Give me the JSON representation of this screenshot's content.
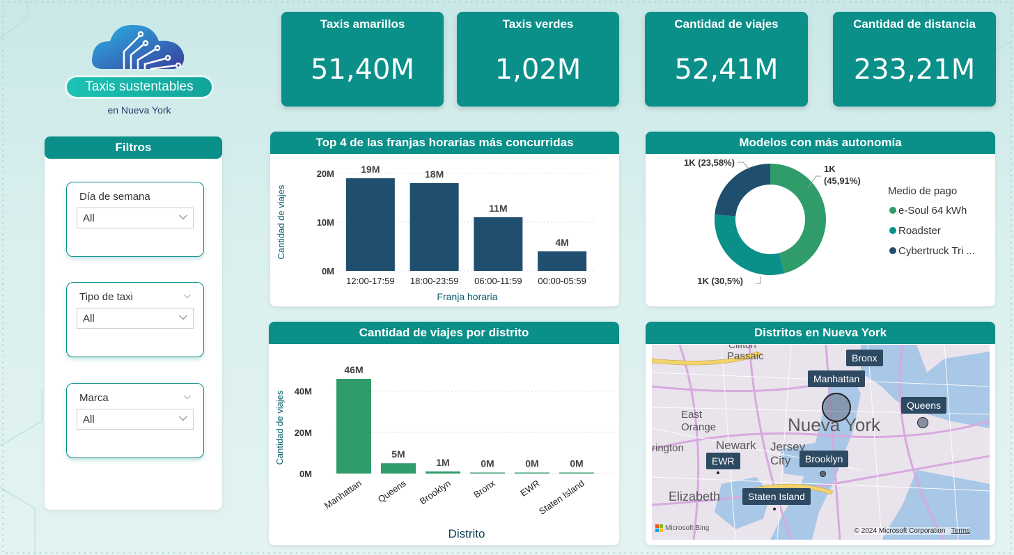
{
  "logo": {
    "title": "Taxis sustentables",
    "subtitle": "en Nueva York"
  },
  "kpis": [
    {
      "title": "Taxis amarillos",
      "value": "51,40M"
    },
    {
      "title": "Taxis verdes",
      "value": "1,02M"
    },
    {
      "title": "Cantidad de viajes",
      "value": "52,41M"
    },
    {
      "title": "Cantidad de distancia",
      "value": "233,21M"
    }
  ],
  "filters": {
    "title": "Filtros",
    "slicers": [
      {
        "label": "Día de semana",
        "value": "All"
      },
      {
        "label": "Tipo de taxi",
        "value": "All"
      },
      {
        "label": "Marca",
        "value": "All"
      }
    ]
  },
  "chart_data": [
    {
      "type": "bar",
      "title": "Top 4 de las franjas horarias más concurridas",
      "xlabel": "Franja horaria",
      "ylabel": "Cantidad de viajes",
      "categories": [
        "12:00-17:59",
        "18:00-23:59",
        "06:00-11:59",
        "00:00-05:59"
      ],
      "values": [
        19,
        18,
        11,
        4
      ],
      "data_labels": [
        "19M",
        "18M",
        "11M",
        "4M"
      ],
      "yticks": [
        "0M",
        "10M",
        "20M"
      ],
      "ylim": [
        0,
        20
      ],
      "color": "#1f4e6e"
    },
    {
      "type": "pie",
      "title": "Modelos con más autonomía",
      "legend_title": "Medio de pago",
      "legend_position": "right",
      "series": [
        {
          "name": "e-Soul 64 kWh",
          "value": 45.91,
          "label": "1K\n(45,91%)",
          "color": "#2f9c6a"
        },
        {
          "name": "Roadster",
          "value": 30.5,
          "label": "1K (30,5%)",
          "color": "#0a8f89"
        },
        {
          "name": "Cybertruck Tri ...",
          "value": 23.58,
          "label": "1K (23,58%)",
          "color": "#1f4e6e"
        }
      ]
    },
    {
      "type": "bar",
      "title": "Cantidad de viajes por distrito",
      "xlabel": "Distrito",
      "ylabel": "Cantidad de viajes",
      "categories": [
        "Manhattan",
        "Queens",
        "Brooklyn",
        "Bronx",
        "EWR",
        "Staten Island"
      ],
      "values": [
        46,
        5,
        1,
        0,
        0,
        0
      ],
      "data_labels": [
        "46M",
        "5M",
        "1M",
        "0M",
        "0M",
        "0M"
      ],
      "yticks": [
        "0M",
        "20M",
        "40M"
      ],
      "ylim": [
        0,
        46
      ],
      "color": "#2f9c6a"
    }
  ],
  "map": {
    "title": "Distritos en Nueva York",
    "center_label": "Nueva York",
    "city_labels": [
      "Passaic",
      "East Orange",
      "Newark",
      "Jersey City",
      "Elizabeth",
      "rington",
      "Clifton"
    ],
    "districts": [
      "Bronx",
      "Manhattan",
      "Queens",
      "EWR",
      "Brooklyn",
      "Staten Island"
    ],
    "copyright": "© 2024 Microsoft Corporation",
    "terms": "Terms",
    "bing": "Microsoft Bing"
  }
}
